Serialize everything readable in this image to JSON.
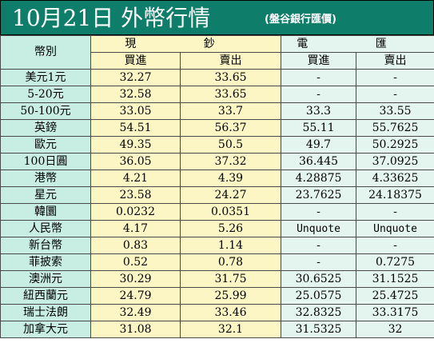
{
  "header": {
    "title": "10月21日 外幣行情",
    "source": "(盤谷銀行匯價)"
  },
  "table": {
    "currency_label": "幣別",
    "cash_label": "現 鈔",
    "wire_label": "電 匯",
    "buy_label": "買進",
    "sell_label": "賣出",
    "rows": [
      {
        "name": "美元1元",
        "cash_buy": "32.27",
        "cash_sell": "33.65",
        "wire_buy": "-",
        "wire_sell": "-"
      },
      {
        "name": "5-20元",
        "cash_buy": "32.58",
        "cash_sell": "33.65",
        "wire_buy": "-",
        "wire_sell": "-"
      },
      {
        "name": "50-100元",
        "cash_buy": "33.05",
        "cash_sell": "33.7",
        "wire_buy": "33.3",
        "wire_sell": "33.55"
      },
      {
        "name": "英鎊",
        "cash_buy": "54.51",
        "cash_sell": "56.37",
        "wire_buy": "55.11",
        "wire_sell": "55.7625"
      },
      {
        "name": "歐元",
        "cash_buy": "49.35",
        "cash_sell": "50.5",
        "wire_buy": "49.7",
        "wire_sell": "50.2925"
      },
      {
        "name": "100日圓",
        "cash_buy": "36.05",
        "cash_sell": "37.32",
        "wire_buy": "36.445",
        "wire_sell": "37.0925"
      },
      {
        "name": "港幣",
        "cash_buy": "4.21",
        "cash_sell": "4.39",
        "wire_buy": "4.28875",
        "wire_sell": "4.33625"
      },
      {
        "name": "星元",
        "cash_buy": "23.58",
        "cash_sell": "24.27",
        "wire_buy": "23.7625",
        "wire_sell": "24.18375"
      },
      {
        "name": "韓圜",
        "cash_buy": "0.0232",
        "cash_sell": "0.0351",
        "wire_buy": "-",
        "wire_sell": "-"
      },
      {
        "name": "人民幣",
        "cash_buy": "4.17",
        "cash_sell": "5.26",
        "wire_buy": "Unquote",
        "wire_sell": "Unquote"
      },
      {
        "name": "新台幣",
        "cash_buy": "0.83",
        "cash_sell": "1.14",
        "wire_buy": "-",
        "wire_sell": "-"
      },
      {
        "name": "菲披索",
        "cash_buy": "0.52",
        "cash_sell": "0.78",
        "wire_buy": "-",
        "wire_sell": "0.7275"
      },
      {
        "name": "澳洲元",
        "cash_buy": "30.29",
        "cash_sell": "31.75",
        "wire_buy": "30.6525",
        "wire_sell": "31.1525"
      },
      {
        "name": "紐西蘭元",
        "cash_buy": "24.79",
        "cash_sell": "25.99",
        "wire_buy": "25.0575",
        "wire_sell": "25.4725"
      },
      {
        "name": "瑞士法朗",
        "cash_buy": "32.49",
        "cash_sell": "33.46",
        "wire_buy": "32.8325",
        "wire_sell": "33.3175"
      },
      {
        "name": "加拿大元",
        "cash_buy": "31.08",
        "cash_sell": "32.1",
        "wire_buy": "31.5325",
        "wire_sell": "32"
      }
    ]
  }
}
